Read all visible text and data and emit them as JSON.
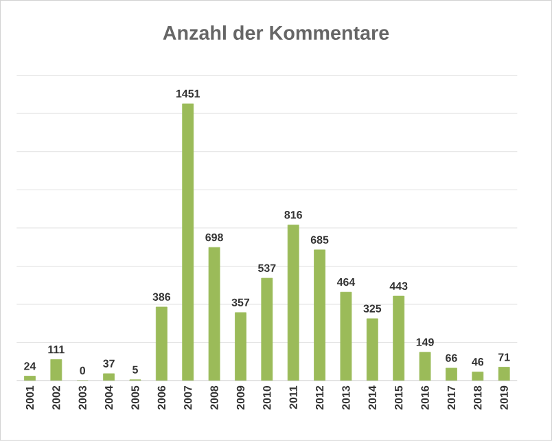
{
  "chart_data": {
    "type": "bar",
    "title": "Anzahl der Kommentare",
    "categories": [
      "2001",
      "2002",
      "2003",
      "2004",
      "2005",
      "2006",
      "2007",
      "2008",
      "2009",
      "2010",
      "2011",
      "2012",
      "2013",
      "2014",
      "2015",
      "2016",
      "2017",
      "2018",
      "2019"
    ],
    "values": [
      24,
      111,
      0,
      37,
      5,
      386,
      1451,
      698,
      357,
      537,
      816,
      685,
      464,
      325,
      443,
      149,
      66,
      46,
      71
    ],
    "color": "#9bbb59",
    "ylim": [
      0,
      1600
    ],
    "yticks": [
      {
        "value": 0,
        "label": null
      },
      {
        "value": 200,
        "label": null
      },
      {
        "value": 400,
        "label": null
      },
      {
        "value": 600,
        "label": null
      },
      {
        "value": 800,
        "label": null
      },
      {
        "value": 1000,
        "label": null
      },
      {
        "value": 1200,
        "label": null
      },
      {
        "value": 1400,
        "label": null
      },
      {
        "value": 1600,
        "label": null
      }
    ],
    "tick_labels": "x",
    "grid": "y",
    "data_labels": true
  }
}
